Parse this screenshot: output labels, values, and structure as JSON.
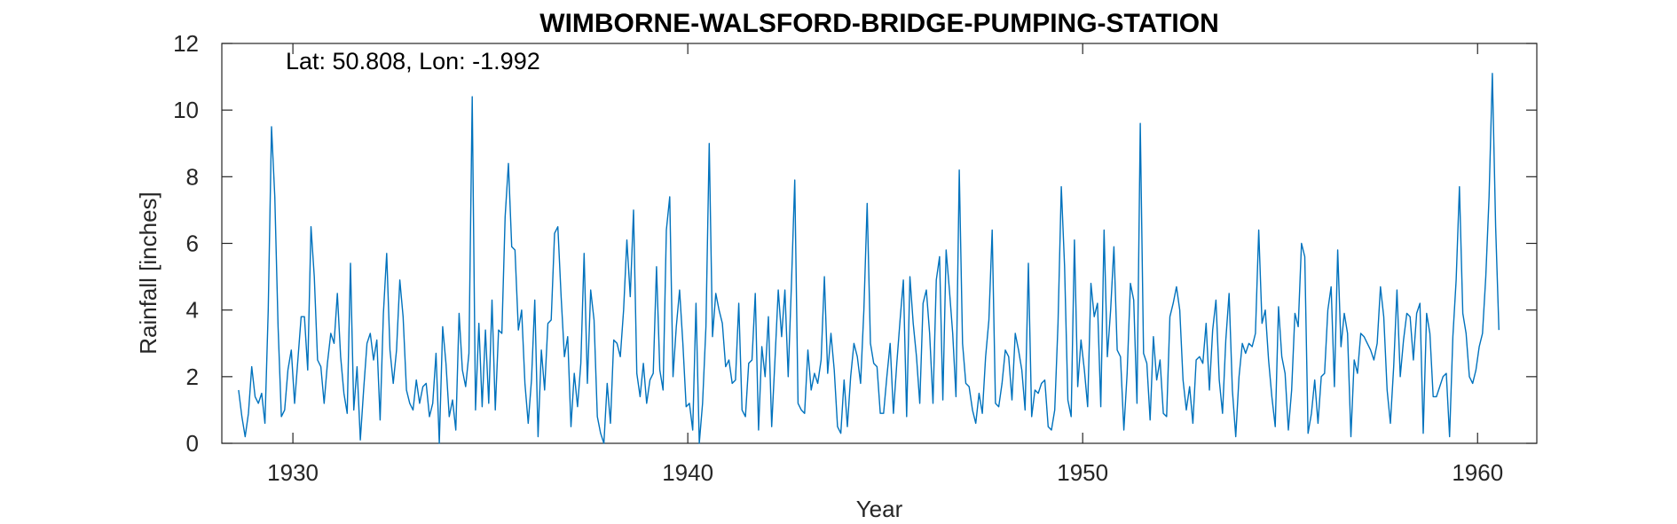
{
  "chart_data": {
    "type": "line",
    "title": "WIMBORNE-WALSFORD-BRIDGE-PUMPING-STATION",
    "annotation": "Lat: 50.808, Lon: -1.992",
    "xlabel": "Year",
    "ylabel": "Rainfall [inches]",
    "xlim": [
      1928.2,
      1961.5
    ],
    "ylim": [
      0,
      12
    ],
    "xticks": [
      1930,
      1940,
      1950,
      1960
    ],
    "yticks": [
      0,
      2,
      4,
      6,
      8,
      10,
      12
    ],
    "grid": false,
    "line_color": "#0072bd",
    "series": [
      {
        "start_year": 1928.625,
        "step": 0.0833333,
        "values": [
          1.6,
          0.8,
          0.2,
          0.9,
          2.3,
          1.4,
          1.2,
          1.5,
          0.6,
          4.0,
          9.5,
          7.4,
          3.5,
          0.8,
          1.0,
          2.2,
          2.8,
          1.2,
          2.5,
          3.8,
          3.8,
          2.2,
          6.5,
          5.0,
          2.5,
          2.3,
          1.2,
          2.4,
          3.3,
          3.0,
          4.5,
          2.6,
          1.5,
          0.9,
          5.4,
          1.0,
          2.3,
          0.1,
          1.6,
          3.0,
          3.3,
          2.5,
          3.1,
          0.7,
          3.9,
          5.7,
          2.8,
          1.8,
          2.8,
          4.9,
          3.8,
          1.6,
          1.2,
          1.0,
          1.9,
          1.2,
          1.7,
          1.8,
          0.8,
          1.2,
          2.7,
          0.0,
          3.5,
          2.4,
          0.8,
          1.3,
          0.4,
          3.9,
          2.2,
          1.7,
          2.7,
          10.4,
          1.0,
          3.6,
          1.1,
          3.4,
          1.2,
          4.3,
          1.0,
          3.4,
          3.3,
          6.8,
          8.4,
          5.9,
          5.8,
          3.4,
          4.0,
          1.8,
          0.6,
          1.9,
          4.3,
          0.2,
          2.8,
          1.6,
          3.6,
          3.7,
          6.3,
          6.5,
          4.4,
          2.6,
          3.2,
          0.5,
          2.1,
          1.1,
          2.4,
          5.7,
          1.8,
          4.6,
          3.7,
          0.8,
          0.3,
          0.0,
          1.8,
          0.6,
          3.1,
          3.0,
          2.6,
          4.0,
          6.1,
          4.4,
          7.0,
          2.1,
          1.4,
          2.4,
          1.2,
          1.9,
          2.1,
          5.3,
          2.2,
          1.6,
          6.4,
          7.4,
          2.0,
          3.5,
          4.6,
          3.0,
          1.1,
          1.2,
          0.4,
          4.2,
          0.0,
          1.2,
          3.5,
          9.0,
          3.2,
          4.5,
          4.0,
          3.6,
          2.3,
          2.5,
          1.8,
          1.9,
          4.2,
          1.0,
          0.8,
          2.4,
          2.5,
          4.5,
          0.4,
          2.9,
          2.0,
          3.8,
          0.5,
          2.5,
          4.6,
          3.2,
          4.6,
          2.0,
          4.8,
          7.9,
          1.2,
          1.0,
          0.9,
          2.8,
          1.6,
          2.1,
          1.8,
          2.5,
          5.0,
          2.1,
          3.3,
          2.2,
          0.5,
          0.3,
          1.9,
          0.5,
          2.0,
          3.0,
          2.6,
          1.8,
          4.0,
          7.2,
          3.0,
          2.4,
          2.3,
          0.9,
          0.9,
          2.0,
          3.0,
          0.9,
          2.4,
          3.7,
          4.9,
          0.8,
          5.0,
          3.6,
          2.6,
          1.2,
          4.2,
          4.6,
          3.3,
          1.2,
          4.9,
          5.6,
          1.3,
          5.8,
          4.6,
          3.3,
          1.4,
          8.2,
          3.0,
          1.8,
          1.7,
          1.0,
          0.6,
          1.5,
          0.9,
          2.6,
          3.7,
          6.4,
          1.2,
          1.1,
          1.8,
          2.8,
          2.6,
          1.3,
          3.3,
          2.8,
          2.2,
          1.0,
          5.4,
          0.8,
          1.6,
          1.5,
          1.8,
          1.9,
          0.5,
          0.4,
          1.0,
          3.6,
          7.7,
          5.3,
          1.3,
          0.8,
          6.1,
          1.7,
          3.1,
          2.2,
          1.1,
          4.8,
          3.8,
          4.2,
          1.1,
          6.4,
          2.6,
          4.0,
          5.9,
          2.8,
          2.6,
          0.4,
          2.1,
          4.8,
          4.3,
          1.2,
          9.6,
          2.7,
          2.4,
          0.7,
          3.2,
          1.9,
          2.5,
          0.9,
          0.8,
          3.8,
          4.2,
          4.7,
          4.0,
          1.9,
          1.0,
          1.7,
          0.6,
          2.5,
          2.6,
          2.4,
          3.6,
          1.6,
          3.4,
          4.3,
          1.9,
          0.9,
          3.1,
          4.5,
          1.6,
          0.2,
          2.0,
          3.0,
          2.7,
          3.0,
          2.9,
          3.3,
          6.4,
          3.6,
          4.0,
          2.5,
          1.4,
          0.5,
          4.1,
          2.6,
          2.1,
          0.4,
          1.6,
          3.9,
          3.5,
          6.0,
          5.6,
          0.3,
          0.9,
          1.9,
          0.6,
          2.0,
          2.1,
          4.0,
          4.7,
          1.7,
          5.8,
          2.9,
          3.9,
          3.3,
          0.2,
          2.5,
          2.1,
          3.3,
          3.2,
          3.0,
          2.8,
          2.5,
          3.0,
          4.7,
          3.8,
          1.6,
          0.6,
          2.3,
          4.6,
          2.0,
          3.1,
          3.9,
          3.8,
          2.5,
          3.9,
          4.2,
          0.3,
          3.9,
          3.3,
          1.4,
          1.4,
          1.7,
          2.0,
          2.1,
          0.2,
          3.2,
          4.9,
          7.7,
          3.9,
          3.3,
          2.0,
          1.8,
          2.2,
          2.9,
          3.3,
          5.0,
          7.4,
          11.1,
          6.5,
          3.4
        ]
      }
    ]
  }
}
